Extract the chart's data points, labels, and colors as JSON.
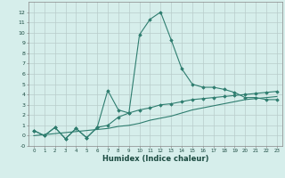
{
  "xlabel": "Humidex (Indice chaleur)",
  "x": [
    0,
    1,
    2,
    3,
    4,
    5,
    6,
    7,
    8,
    9,
    10,
    11,
    12,
    13,
    14,
    15,
    16,
    17,
    18,
    19,
    20,
    21,
    22,
    23
  ],
  "line1": [
    0.5,
    0.0,
    0.8,
    -0.3,
    0.7,
    -0.2,
    0.8,
    4.4,
    2.5,
    2.2,
    9.8,
    11.3,
    12.0,
    9.3,
    6.5,
    5.0,
    4.7,
    4.7,
    4.5,
    4.2,
    3.7,
    3.7,
    3.5,
    3.5
  ],
  "line2": [
    0.5,
    0.0,
    0.8,
    -0.3,
    0.7,
    -0.2,
    0.8,
    1.0,
    1.8,
    2.2,
    2.5,
    2.7,
    3.0,
    3.1,
    3.3,
    3.5,
    3.6,
    3.7,
    3.8,
    3.9,
    4.0,
    4.1,
    4.2,
    4.3
  ],
  "line3": [
    0.0,
    0.1,
    0.2,
    0.3,
    0.4,
    0.5,
    0.6,
    0.7,
    0.9,
    1.0,
    1.2,
    1.5,
    1.7,
    1.9,
    2.2,
    2.5,
    2.7,
    2.9,
    3.1,
    3.3,
    3.5,
    3.6,
    3.7,
    3.8
  ],
  "color": "#2E7D6F",
  "bg_color": "#D6EEEB",
  "grid_color": "#B8CCCA",
  "ylim": [
    -1,
    13
  ],
  "xlim": [
    -0.5,
    23.5
  ]
}
